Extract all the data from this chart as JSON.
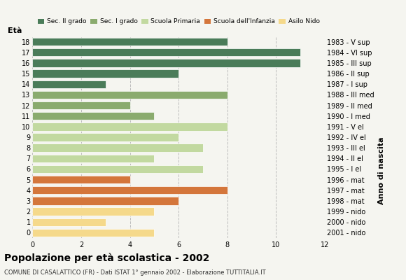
{
  "ages": [
    18,
    17,
    16,
    15,
    14,
    13,
    12,
    11,
    10,
    9,
    8,
    7,
    6,
    5,
    4,
    3,
    2,
    1,
    0
  ],
  "values": [
    8,
    11,
    11,
    6,
    3,
    8,
    4,
    5,
    8,
    6,
    7,
    5,
    7,
    4,
    8,
    6,
    5,
    3,
    5
  ],
  "right_labels": [
    "1983 - V sup",
    "1984 - VI sup",
    "1985 - III sup",
    "1986 - II sup",
    "1987 - I sup",
    "1988 - III med",
    "1989 - II med",
    "1990 - I med",
    "1991 - V el",
    "1992 - IV el",
    "1993 - III el",
    "1994 - II el",
    "1995 - I el",
    "1996 - mat",
    "1997 - mat",
    "1998 - mat",
    "1999 - nido",
    "2000 - nido",
    "2001 - nido"
  ],
  "colors": {
    "Sec. II grado": "#4a7c59",
    "Sec. I grado": "#8aab6e",
    "Scuola Primaria": "#c2d9a0",
    "Scuola dell'Infanzia": "#d4763b",
    "Asilo Nido": "#f5d98b"
  },
  "age_to_category": {
    "18": "Sec. II grado",
    "17": "Sec. II grado",
    "16": "Sec. II grado",
    "15": "Sec. II grado",
    "14": "Sec. II grado",
    "13": "Sec. I grado",
    "12": "Sec. I grado",
    "11": "Sec. I grado",
    "10": "Scuola Primaria",
    "9": "Scuola Primaria",
    "8": "Scuola Primaria",
    "7": "Scuola Primaria",
    "6": "Scuola Primaria",
    "5": "Scuola dell'Infanzia",
    "4": "Scuola dell'Infanzia",
    "3": "Scuola dell'Infanzia",
    "2": "Asilo Nido",
    "1": "Asilo Nido",
    "0": "Asilo Nido"
  },
  "title": "Popolazione per età scolastica - 2002",
  "subtitle": "COMUNE DI CASALATTICO (FR) - Dati ISTAT 1° gennaio 2002 - Elaborazione TUTTITALIA.IT",
  "xlabel_left": "Età",
  "xlabel_right": "Anno di nascita",
  "xlim": [
    0,
    12
  ],
  "xticks": [
    0,
    2,
    4,
    6,
    8,
    10,
    12
  ],
  "background_color": "#f5f5f0",
  "grid_color": "#bbbbbb"
}
